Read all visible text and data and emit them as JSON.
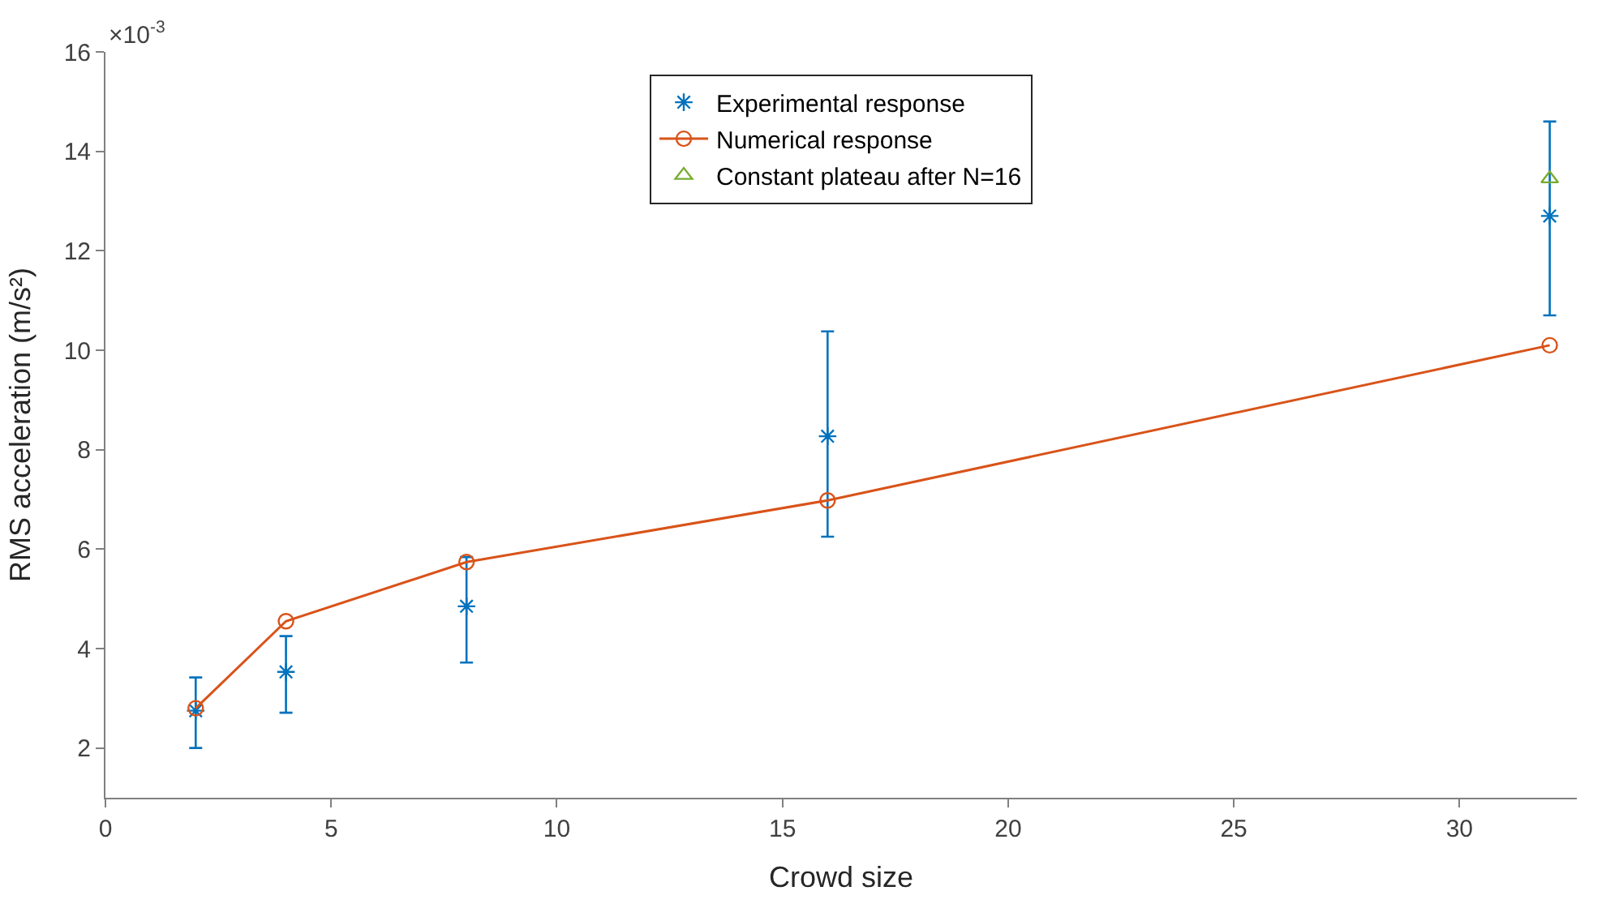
{
  "chart_data": {
    "type": "line",
    "xlabel": "Crowd size",
    "ylabel": "RMS acceleration (m/s²)",
    "annotations": [
      "×10$^{-3}$"
    ],
    "xlim": [
      0,
      32.6
    ],
    "xticks": [
      0,
      5,
      10,
      15,
      20,
      25,
      30
    ],
    "ylim": [
      1,
      16
    ],
    "yticks": [
      2,
      4,
      6,
      8,
      10,
      12,
      14,
      16
    ],
    "legend": "top",
    "x": [
      2,
      4,
      8,
      16,
      32
    ],
    "series": [
      {
        "name": "Experimental response",
        "color": "#0072bd",
        "type": "scatter",
        "marker": "cross",
        "values": [
          2.75,
          3.53,
          4.85,
          8.27,
          12.7
        ],
        "errors": [
          [
            2.0,
            3.42
          ],
          [
            2.71,
            4.25
          ],
          [
            3.72,
            5.84
          ],
          [
            6.25,
            10.38
          ],
          [
            10.7,
            14.6
          ]
        ]
      },
      {
        "name": "Numerical response",
        "color": "#d95319",
        "marker": "circle",
        "values": [
          2.8,
          4.55,
          5.74,
          6.98,
          10.1
        ]
      },
      {
        "name": "Constant plateau after N=16",
        "color": "#77ac30",
        "type": "scatter",
        "marker": "triangle",
        "x": [
          32
        ],
        "values": [
          13.45
        ]
      }
    ]
  }
}
